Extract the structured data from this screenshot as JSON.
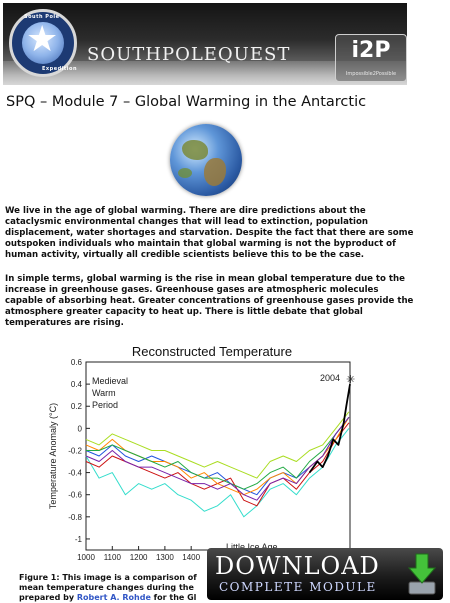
{
  "banner": {
    "logo_text_top": "South Pole",
    "logo_text_right": "Expedition",
    "brand": "SOUTHPOLEQUEST",
    "partner_logo": "i2P",
    "partner_tagline": "Impossible2Possible"
  },
  "page_title": "SPQ – Module 7 – Global Warming in the Antarctic",
  "intro_paragraph": "We live in the age of global warming.  There are dire predictions about the cataclysmic environmental changes that will lead to extinction, population displacement, water shortages and starvation.  Despite the fact that there are some outspoken individuals who maintain that global warming is not the byproduct of human activity, virtually all credible scientists believe this to be the case.",
  "definition_paragraph": "In simple terms, global warming is the rise in mean global temperature due to the increase in greenhouse gases.  Greenhouse gases are atmospheric molecules capable of absorbing heat.  Greater concentrations of greenhouse gases provide the atmosphere greater capacity to heat up.  There is little debate that global temperatures are rising.",
  "figure": {
    "title": "Reconstructed Temperature",
    "ylabel": "Temperature Anomaly (°C)",
    "yticks": [
      "0.6",
      "0.4",
      "0.2",
      "0",
      "-0.2",
      "-0.4",
      "-0.6",
      "-0.8",
      "-1"
    ],
    "xticks": [
      "1000",
      "1100",
      "1200",
      "1300",
      "1400"
    ],
    "annotation_medieval": [
      "Medieval",
      "Warm",
      "Period"
    ],
    "annotation_lia": "Little Ice Age",
    "annotation_2004": "2004",
    "caption_line1": "Figure 1: This image is a comparison of",
    "caption_line2": "mean temperature changes during the",
    "caption_line3_prefix": "prepared by ",
    "caption_link": "Robert A. Rohde",
    "caption_line3_suffix": " for the Gl"
  },
  "download": {
    "label": "DOWNLOAD",
    "sublabel": "COMPLETE MODULE"
  },
  "chart_data": {
    "type": "line",
    "title": "Reconstructed Temperature",
    "xlabel": "",
    "ylabel": "Temperature Anomaly (°C)",
    "xlim": [
      1000,
      2004
    ],
    "ylim": [
      -1.1,
      0.6
    ],
    "grid": false,
    "series": [
      {
        "color": "#33ddcc",
        "x": [
          1000,
          1050,
          1100,
          1150,
          1200,
          1250,
          1300,
          1350,
          1400,
          1450,
          1500,
          1550,
          1600,
          1650,
          1700,
          1750,
          1800,
          1850,
          1900,
          1950,
          2000
        ],
        "y": [
          -0.25,
          -0.45,
          -0.4,
          -0.6,
          -0.5,
          -0.55,
          -0.5,
          -0.6,
          -0.65,
          -0.75,
          -0.7,
          -0.6,
          -0.8,
          -0.7,
          -0.55,
          -0.5,
          -0.6,
          -0.45,
          -0.35,
          -0.15,
          0.0
        ]
      },
      {
        "color": "#2255dd",
        "x": [
          1000,
          1050,
          1100,
          1150,
          1200,
          1250,
          1300,
          1350,
          1400,
          1450,
          1500,
          1550,
          1600,
          1650,
          1700,
          1750,
          1800,
          1850,
          1900,
          1950,
          2000
        ],
        "y": [
          -0.2,
          -0.25,
          -0.15,
          -0.25,
          -0.3,
          -0.25,
          -0.3,
          -0.35,
          -0.4,
          -0.45,
          -0.4,
          -0.5,
          -0.55,
          -0.6,
          -0.45,
          -0.4,
          -0.45,
          -0.35,
          -0.25,
          -0.05,
          0.1
        ]
      },
      {
        "color": "#cc1111",
        "x": [
          1000,
          1050,
          1100,
          1150,
          1200,
          1250,
          1300,
          1350,
          1400,
          1450,
          1500,
          1550,
          1600,
          1650,
          1700,
          1750,
          1800,
          1850,
          1900,
          1950,
          2000
        ],
        "y": [
          -0.3,
          -0.35,
          -0.25,
          -0.3,
          -0.35,
          -0.4,
          -0.45,
          -0.4,
          -0.5,
          -0.55,
          -0.5,
          -0.45,
          -0.65,
          -0.7,
          -0.5,
          -0.45,
          -0.55,
          -0.4,
          -0.3,
          -0.1,
          0.05
        ]
      },
      {
        "color": "#ff8800",
        "x": [
          1000,
          1050,
          1100,
          1150,
          1200,
          1250,
          1300,
          1350,
          1400,
          1450,
          1500,
          1550,
          1600,
          1650,
          1700,
          1750,
          1800,
          1850,
          1900,
          1950,
          2000
        ],
        "y": [
          -0.15,
          -0.2,
          -0.1,
          -0.2,
          -0.25,
          -0.3,
          -0.3,
          -0.35,
          -0.45,
          -0.4,
          -0.5,
          -0.55,
          -0.6,
          -0.55,
          -0.45,
          -0.4,
          -0.5,
          -0.35,
          -0.25,
          -0.1,
          0.1
        ]
      },
      {
        "color": "#aadd22",
        "x": [
          1000,
          1050,
          1100,
          1150,
          1200,
          1250,
          1300,
          1350,
          1400,
          1450,
          1500,
          1550,
          1600,
          1650,
          1700,
          1750,
          1800,
          1850,
          1900,
          1950,
          2000
        ],
        "y": [
          -0.1,
          -0.15,
          -0.05,
          -0.1,
          -0.15,
          -0.2,
          -0.2,
          -0.25,
          -0.3,
          -0.35,
          -0.3,
          -0.35,
          -0.4,
          -0.45,
          -0.3,
          -0.25,
          -0.3,
          -0.2,
          -0.15,
          0.0,
          0.15
        ]
      },
      {
        "color": "#22aa44",
        "x": [
          1000,
          1050,
          1100,
          1150,
          1200,
          1250,
          1300,
          1350,
          1400,
          1450,
          1500,
          1550,
          1600,
          1650,
          1700,
          1750,
          1800,
          1850,
          1900,
          1950,
          2000
        ],
        "y": [
          -0.2,
          -0.2,
          -0.15,
          -0.2,
          -0.25,
          -0.3,
          -0.35,
          -0.3,
          -0.4,
          -0.45,
          -0.45,
          -0.5,
          -0.55,
          -0.5,
          -0.4,
          -0.35,
          -0.45,
          -0.3,
          -0.2,
          -0.05,
          0.1
        ]
      },
      {
        "color": "#7722aa",
        "x": [
          1000,
          1050,
          1100,
          1150,
          1200,
          1250,
          1300,
          1350,
          1400,
          1450,
          1500,
          1550,
          1600,
          1650,
          1700,
          1750,
          1800,
          1850,
          1900,
          1950,
          2000
        ],
        "y": [
          -0.25,
          -0.3,
          -0.2,
          -0.3,
          -0.35,
          -0.35,
          -0.4,
          -0.45,
          -0.5,
          -0.5,
          -0.55,
          -0.5,
          -0.6,
          -0.65,
          -0.5,
          -0.45,
          -0.5,
          -0.35,
          -0.25,
          -0.05,
          0.1
        ]
      },
      {
        "color": "#000000",
        "x": [
          1850,
          1880,
          1900,
          1920,
          1940,
          1960,
          1980,
          1990,
          2004
        ],
        "y": [
          -0.4,
          -0.3,
          -0.35,
          -0.25,
          -0.1,
          -0.15,
          0.05,
          0.2,
          0.4
        ]
      }
    ]
  }
}
